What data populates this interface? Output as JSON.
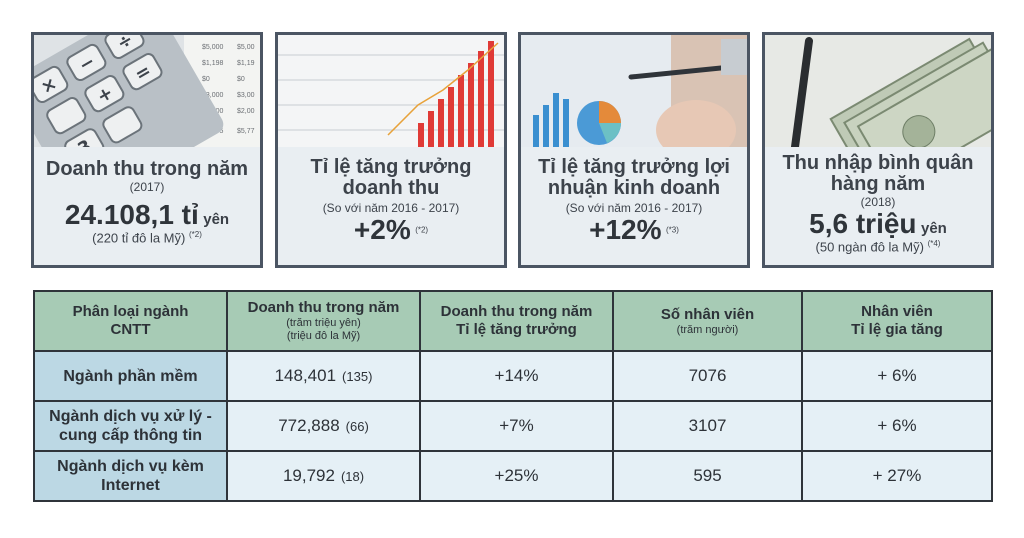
{
  "cards": [
    {
      "title": "Doanh thu trong năm",
      "sub": "(2017)",
      "value": "24.108,1 tỉ",
      "unit": "yên",
      "paren": "(220 tỉ đô la Mỹ)",
      "note": "(*2)"
    },
    {
      "title_l1": "Tỉ lệ tăng trưởng",
      "title_l2": "doanh thu",
      "sub": "(So với năm 2016 - 2017)",
      "value": "+2%",
      "note": "(*2)"
    },
    {
      "title_l1": "Tỉ lệ tăng trưởng lợi",
      "title_l2": "nhuận kinh doanh",
      "sub": "(So với năm 2016 - 2017)",
      "value": "+12%",
      "note": "(*3)"
    },
    {
      "title_l1": "Thu nhập bình quân",
      "title_l2": "hàng năm",
      "sub": "(2018)",
      "value": "5,6 triệu",
      "unit": "yên",
      "paren": "(50 ngàn đô la Mỹ)",
      "note": "(*4)"
    }
  ],
  "photo_text": {
    "calc_col1": [
      "$5,000",
      "$1,198",
      "$0",
      "$3,000",
      "$3,000",
      "$5,775"
    ],
    "calc_col2": [
      "$5,00",
      "$1,19",
      "$0",
      "$3,00",
      "$2,00",
      "$5,77"
    ]
  },
  "table": {
    "headers": [
      {
        "l1": "Phân loại ngành",
        "l2": "CNTT"
      },
      {
        "l1": "Doanh thu trong năm",
        "s1": "(trăm triệu yên)",
        "s2": "(triệu đô la Mỹ)"
      },
      {
        "l1": "Doanh thu trong năm",
        "l2": "Tỉ lệ tăng trưởng"
      },
      {
        "l1": "Số nhân viên",
        "s1": "(trăm người)"
      },
      {
        "l1": "Nhân viên",
        "l2": "Tỉ lệ gia tăng"
      }
    ],
    "rows": [
      {
        "cat_l1": "Ngành phần mềm",
        "cat_l2": "",
        "revenue": "148,401",
        "usd": "(135)",
        "growth": "+14%",
        "staff": "7076",
        "staff_growth": "+ 6%"
      },
      {
        "cat_l1": "Ngành dịch vụ xử lý -",
        "cat_l2": "cung cấp thông tin",
        "revenue": "772,888",
        "usd": "(66)",
        "growth": "+7%",
        "staff": "3107",
        "staff_growth": "+ 6%"
      },
      {
        "cat_l1": "Ngành dịch vụ kèm",
        "cat_l2": "Internet",
        "revenue": "19,792",
        "usd": "(18)",
        "growth": "+25%",
        "staff": "595",
        "staff_growth": "+ 27%"
      }
    ]
  }
}
